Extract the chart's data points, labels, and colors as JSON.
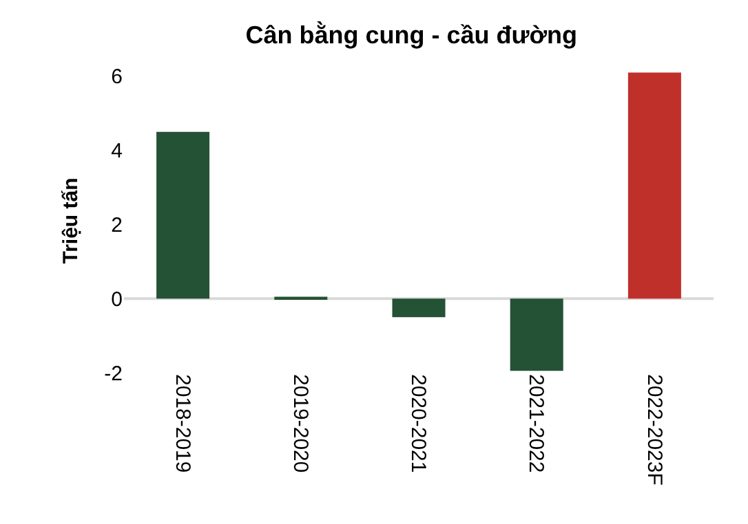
{
  "chart_data": {
    "type": "bar",
    "title": "Cân bằng cung - cầu đường",
    "ylabel": "Triệu tấn",
    "categories": [
      "2018-2019",
      "2019-2020",
      "2020-2021",
      "2021-2022",
      "2022-2023F"
    ],
    "values": [
      4.5,
      0.05,
      -0.5,
      -1.95,
      6.1
    ],
    "colors": [
      "#245234",
      "#245234",
      "#245234",
      "#245234",
      "#c0302b"
    ],
    "ylim": [
      -2,
      6.2
    ],
    "yticks": [
      -2,
      0,
      2,
      4,
      6
    ],
    "ref_lines": [
      {
        "axis": "y",
        "value": 0,
        "color": "#d9d9d9"
      }
    ]
  }
}
